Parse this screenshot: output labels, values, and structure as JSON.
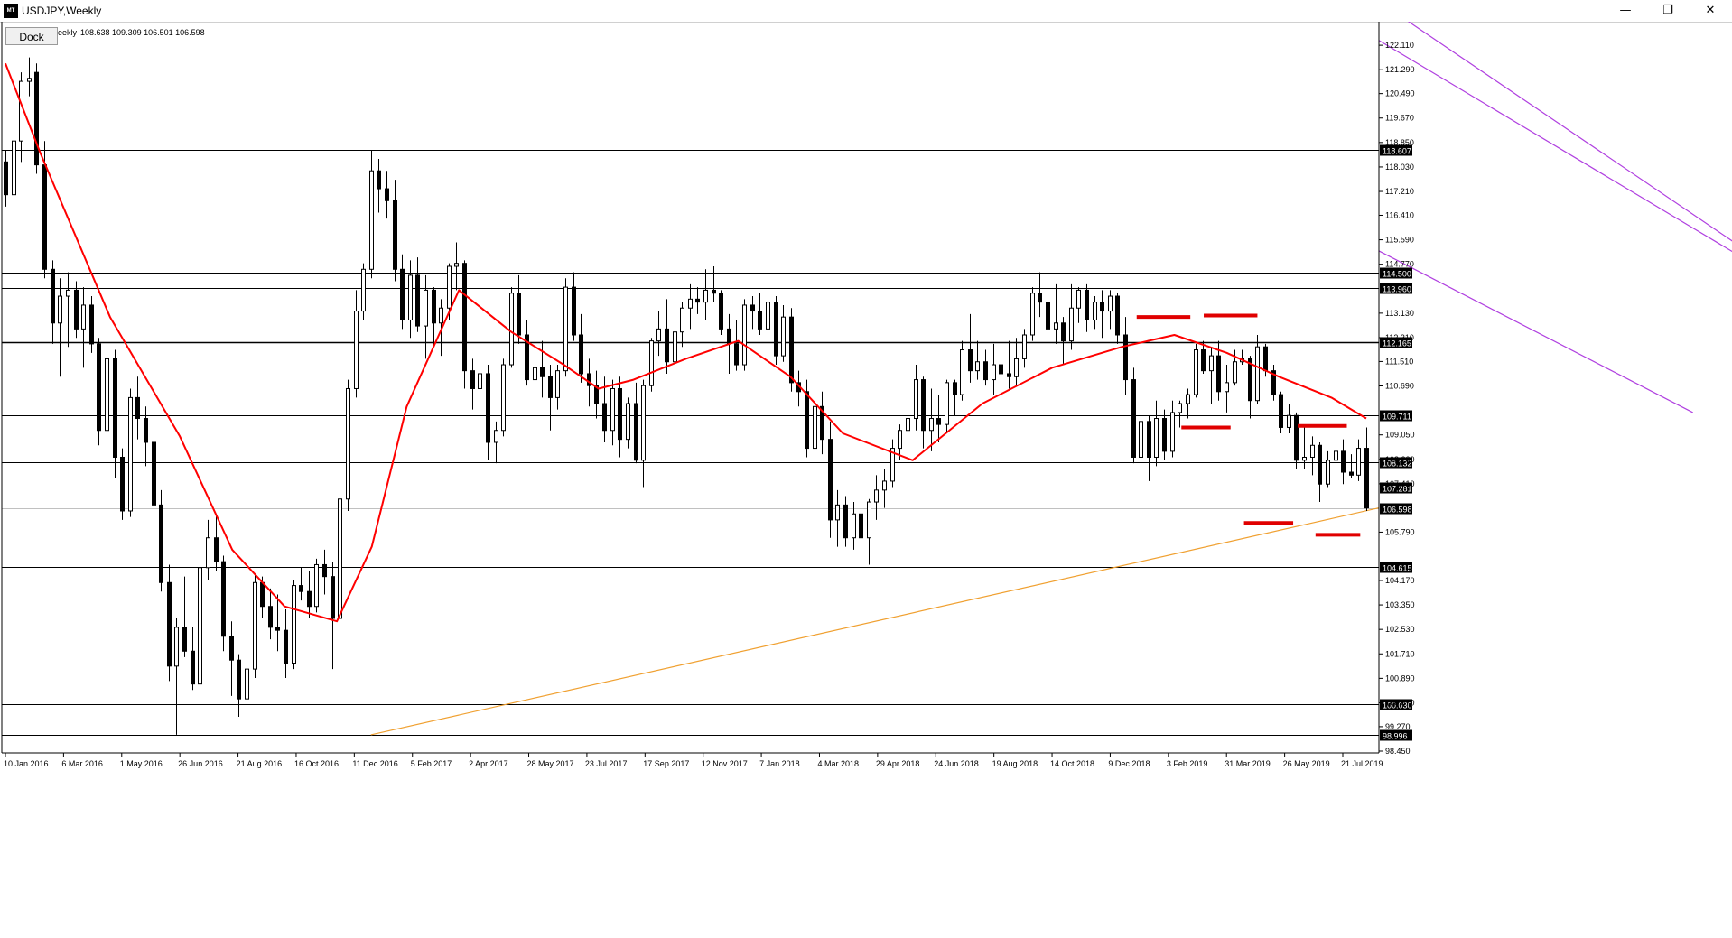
{
  "window": {
    "title": "USDJPY,Weekly",
    "app_icon_text": "MT",
    "minimize_glyph": "—",
    "restore_glyph": "❐",
    "close_glyph": "✕"
  },
  "toolbar": {
    "dock_label": "Dock"
  },
  "info": {
    "prefix": "eekly",
    "ohlc": "108.638 109.309 106.501 106.598"
  },
  "colors": {
    "background": "#ffffff",
    "candle": "#000000",
    "moving_average": "#ff0000",
    "trendline": "#f0a030",
    "channel": "#b040e0",
    "markers": "#e00000",
    "price_label_bg": "#000000",
    "price_label_text": "#ffffff"
  },
  "chart_data": {
    "type": "candlestick",
    "symbol": "USDJPY",
    "timeframe": "Weekly",
    "ylim": [
      98.45,
      122.9
    ],
    "grid": false,
    "y_ticks": [
      "122.110",
      "121.290",
      "120.490",
      "119.670",
      "118.850",
      "118.030",
      "117.210",
      "116.410",
      "115.590",
      "114.770",
      "113.130",
      "112.310",
      "111.510",
      "110.690",
      "109.050",
      "108.230",
      "107.410",
      "105.790",
      "104.170",
      "103.350",
      "102.530",
      "101.710",
      "100.890",
      "100.070",
      "99.270",
      "98.450"
    ],
    "x_labels": [
      "10 Jan 2016",
      "6 Mar 2016",
      "1 May 2016",
      "26 Jun 2016",
      "21 Aug 2016",
      "16 Oct 2016",
      "11 Dec 2016",
      "5 Feb 2017",
      "2 Apr 2017",
      "28 May 2017",
      "23 Jul 2017",
      "17 Sep 2017",
      "12 Nov 2017",
      "7 Jan 2018",
      "4 Mar 2018",
      "29 Apr 2018",
      "24 Jun 2018",
      "19 Aug 2018",
      "14 Oct 2018",
      "9 Dec 2018",
      "3 Feb 2019",
      "31 Mar 2019",
      "26 May 2019",
      "21 Jul 2019"
    ],
    "horizontal_levels": [
      {
        "price": 118.607,
        "label": "118.607"
      },
      {
        "price": 114.5,
        "label": "114.500"
      },
      {
        "price": 113.96,
        "label": "113.960"
      },
      {
        "price": 112.165,
        "label": "112.165"
      },
      {
        "price": 109.711,
        "label": "109.711"
      },
      {
        "price": 108.132,
        "label": "108.132"
      },
      {
        "price": 107.281,
        "label": "107.281"
      },
      {
        "price": 104.615,
        "label": "104.615"
      },
      {
        "price": 100.03,
        "label": "100.030"
      },
      {
        "price": 98.996,
        "label": "98.996"
      }
    ],
    "current_price": {
      "price": 106.598,
      "label": "106.598"
    },
    "candles": [
      [
        118.2,
        118.6,
        116.7,
        117.1
      ],
      [
        117.1,
        119.1,
        116.4,
        118.9
      ],
      [
        118.9,
        121.2,
        118.2,
        120.9
      ],
      [
        120.9,
        121.7,
        120.4,
        121.0
      ],
      [
        121.2,
        121.5,
        117.8,
        118.1
      ],
      [
        118.1,
        118.9,
        114.3,
        114.6
      ],
      [
        114.6,
        114.9,
        112.1,
        112.8
      ],
      [
        112.8,
        114.3,
        111.0,
        113.7
      ],
      [
        113.7,
        114.5,
        112.0,
        113.9
      ],
      [
        113.9,
        114.2,
        112.3,
        112.6
      ],
      [
        112.6,
        114.0,
        111.3,
        113.4
      ],
      [
        113.4,
        113.7,
        111.8,
        112.1
      ],
      [
        112.1,
        112.3,
        108.7,
        109.2
      ],
      [
        109.2,
        111.8,
        108.8,
        111.6
      ],
      [
        111.6,
        111.9,
        107.6,
        108.3
      ],
      [
        108.3,
        108.6,
        106.2,
        106.5
      ],
      [
        106.5,
        110.6,
        106.3,
        110.3
      ],
      [
        110.3,
        111.0,
        108.9,
        109.6
      ],
      [
        109.6,
        110.0,
        108.0,
        108.8
      ],
      [
        108.8,
        109.1,
        106.4,
        106.7
      ],
      [
        106.7,
        107.2,
        103.8,
        104.1
      ],
      [
        104.1,
        104.7,
        100.8,
        101.3
      ],
      [
        101.3,
        102.9,
        99.0,
        102.6
      ],
      [
        102.6,
        104.3,
        101.6,
        101.8
      ],
      [
        101.8,
        102.6,
        100.5,
        100.7
      ],
      [
        100.7,
        105.6,
        100.6,
        104.6
      ],
      [
        104.6,
        106.2,
        104.2,
        105.6
      ],
      [
        105.6,
        106.4,
        104.5,
        104.8
      ],
      [
        104.8,
        105.0,
        101.8,
        102.3
      ],
      [
        102.3,
        102.8,
        100.3,
        101.5
      ],
      [
        101.5,
        101.7,
        99.6,
        100.2
      ],
      [
        100.2,
        102.8,
        100.0,
        101.2
      ],
      [
        101.2,
        104.4,
        100.9,
        104.1
      ],
      [
        104.1,
        104.3,
        102.9,
        103.3
      ],
      [
        103.3,
        103.9,
        102.2,
        102.6
      ],
      [
        102.6,
        103.7,
        101.8,
        102.5
      ],
      [
        102.5,
        103.2,
        100.9,
        101.4
      ],
      [
        101.4,
        104.2,
        101.2,
        104.0
      ],
      [
        104.0,
        104.6,
        103.5,
        103.8
      ],
      [
        103.8,
        104.5,
        102.9,
        103.3
      ],
      [
        103.3,
        104.9,
        103.1,
        104.7
      ],
      [
        104.7,
        105.2,
        103.7,
        104.3
      ],
      [
        104.3,
        104.8,
        101.2,
        102.9
      ],
      [
        102.9,
        107.2,
        102.6,
        106.9
      ],
      [
        106.9,
        110.9,
        106.5,
        110.6
      ],
      [
        110.6,
        113.9,
        110.3,
        113.2
      ],
      [
        113.2,
        114.8,
        112.9,
        114.6
      ],
      [
        114.6,
        118.6,
        114.3,
        117.9
      ],
      [
        117.9,
        118.3,
        116.5,
        117.3
      ],
      [
        117.3,
        117.9,
        116.3,
        116.9
      ],
      [
        116.9,
        117.6,
        114.2,
        114.6
      ],
      [
        114.6,
        115.1,
        112.6,
        112.9
      ],
      [
        112.9,
        114.9,
        112.3,
        114.4
      ],
      [
        114.4,
        115.0,
        112.5,
        112.7
      ],
      [
        112.7,
        114.4,
        111.6,
        113.9
      ],
      [
        113.9,
        114.0,
        112.0,
        112.8
      ],
      [
        112.8,
        113.6,
        111.7,
        113.3
      ],
      [
        113.3,
        114.8,
        112.9,
        114.7
      ],
      [
        114.7,
        115.5,
        113.9,
        114.8
      ],
      [
        114.8,
        114.9,
        110.6,
        111.2
      ],
      [
        111.2,
        111.6,
        109.9,
        110.6
      ],
      [
        110.6,
        111.5,
        110.1,
        111.1
      ],
      [
        111.1,
        111.4,
        108.2,
        108.8
      ],
      [
        108.8,
        109.5,
        108.1,
        109.2
      ],
      [
        109.2,
        111.6,
        109.0,
        111.4
      ],
      [
        111.4,
        114.0,
        111.3,
        113.8
      ],
      [
        113.8,
        114.4,
        112.1,
        112.4
      ],
      [
        112.4,
        112.9,
        110.7,
        110.9
      ],
      [
        110.9,
        111.8,
        109.8,
        111.3
      ],
      [
        111.3,
        112.2,
        110.3,
        111.0
      ],
      [
        111.0,
        111.4,
        109.2,
        110.3
      ],
      [
        110.3,
        111.4,
        109.9,
        111.2
      ],
      [
        111.2,
        114.3,
        111.0,
        114.0
      ],
      [
        114.0,
        114.5,
        112.2,
        112.4
      ],
      [
        112.4,
        113.1,
        110.8,
        111.1
      ],
      [
        111.1,
        111.6,
        110.0,
        110.7
      ],
      [
        110.7,
        111.2,
        109.6,
        110.1
      ],
      [
        110.1,
        111.0,
        108.8,
        109.2
      ],
      [
        109.2,
        110.9,
        108.7,
        110.6
      ],
      [
        110.6,
        111.0,
        108.3,
        108.9
      ],
      [
        108.9,
        110.3,
        108.6,
        110.1
      ],
      [
        110.1,
        110.8,
        108.1,
        108.2
      ],
      [
        108.2,
        110.9,
        107.3,
        110.7
      ],
      [
        110.7,
        112.3,
        110.5,
        112.2
      ],
      [
        112.2,
        113.2,
        111.7,
        112.6
      ],
      [
        112.6,
        113.6,
        111.1,
        111.5
      ],
      [
        111.5,
        112.7,
        110.8,
        112.5
      ],
      [
        112.5,
        113.5,
        112.0,
        113.3
      ],
      [
        113.3,
        114.1,
        112.6,
        113.6
      ],
      [
        113.6,
        114.0,
        113.1,
        113.5
      ],
      [
        113.5,
        114.6,
        112.9,
        113.9
      ],
      [
        113.9,
        114.7,
        113.5,
        113.8
      ],
      [
        113.8,
        113.9,
        112.4,
        112.6
      ],
      [
        112.6,
        113.1,
        111.1,
        112.1
      ],
      [
        112.1,
        112.9,
        111.2,
        111.4
      ],
      [
        111.4,
        113.6,
        111.2,
        113.4
      ],
      [
        113.4,
        113.7,
        112.6,
        113.2
      ],
      [
        113.2,
        113.8,
        112.4,
        112.6
      ],
      [
        112.6,
        113.7,
        112.2,
        113.5
      ],
      [
        113.5,
        113.7,
        111.4,
        111.7
      ],
      [
        111.7,
        113.4,
        111.5,
        113.0
      ],
      [
        113.0,
        113.3,
        110.5,
        110.8
      ],
      [
        110.8,
        111.2,
        110.0,
        110.5
      ],
      [
        110.5,
        110.9,
        108.3,
        108.6
      ],
      [
        108.6,
        110.3,
        108.0,
        110.0
      ],
      [
        110.0,
        110.5,
        108.4,
        108.9
      ],
      [
        108.9,
        109.5,
        105.6,
        106.2
      ],
      [
        106.2,
        107.2,
        105.3,
        106.7
      ],
      [
        106.7,
        107.0,
        105.3,
        105.6
      ],
      [
        105.6,
        106.8,
        105.2,
        106.4
      ],
      [
        106.4,
        106.5,
        104.6,
        105.6
      ],
      [
        105.6,
        106.9,
        104.7,
        106.8
      ],
      [
        106.8,
        107.7,
        106.2,
        107.2
      ],
      [
        107.2,
        107.9,
        106.6,
        107.5
      ],
      [
        107.5,
        108.9,
        107.3,
        108.6
      ],
      [
        108.6,
        109.4,
        108.2,
        109.2
      ],
      [
        109.2,
        110.4,
        108.9,
        109.6
      ],
      [
        109.6,
        111.4,
        109.2,
        110.9
      ],
      [
        110.9,
        111.0,
        108.6,
        109.2
      ],
      [
        109.2,
        110.6,
        108.5,
        109.6
      ],
      [
        109.6,
        110.4,
        108.8,
        109.4
      ],
      [
        109.4,
        110.9,
        109.1,
        110.8
      ],
      [
        110.8,
        110.9,
        109.7,
        110.4
      ],
      [
        110.4,
        112.2,
        110.2,
        111.9
      ],
      [
        111.9,
        113.1,
        110.8,
        111.2
      ],
      [
        111.2,
        112.2,
        110.9,
        111.5
      ],
      [
        111.5,
        111.9,
        110.7,
        110.9
      ],
      [
        110.9,
        112.1,
        110.4,
        111.4
      ],
      [
        111.4,
        111.8,
        110.3,
        111.1
      ],
      [
        111.1,
        112.2,
        110.6,
        111.0
      ],
      [
        111.0,
        112.3,
        110.7,
        111.6
      ],
      [
        111.6,
        112.6,
        111.3,
        112.4
      ],
      [
        112.4,
        114.0,
        112.2,
        113.8
      ],
      [
        113.8,
        114.5,
        113.0,
        113.5
      ],
      [
        113.5,
        113.9,
        112.3,
        112.6
      ],
      [
        112.6,
        114.1,
        112.1,
        112.8
      ],
      [
        112.8,
        113.0,
        111.4,
        112.2
      ],
      [
        112.2,
        114.1,
        111.9,
        113.3
      ],
      [
        113.3,
        114.0,
        112.8,
        113.9
      ],
      [
        113.9,
        114.1,
        112.5,
        112.9
      ],
      [
        112.9,
        113.7,
        112.6,
        113.5
      ],
      [
        113.5,
        113.9,
        112.3,
        113.2
      ],
      [
        113.2,
        113.9,
        112.6,
        113.7
      ],
      [
        113.7,
        113.8,
        112.1,
        112.4
      ],
      [
        112.4,
        113.0,
        110.4,
        110.9
      ],
      [
        110.9,
        111.3,
        108.1,
        108.3
      ],
      [
        108.3,
        110.0,
        108.1,
        109.5
      ],
      [
        109.5,
        109.7,
        107.5,
        108.3
      ],
      [
        108.3,
        110.2,
        108.0,
        109.6
      ],
      [
        109.6,
        109.9,
        108.2,
        108.5
      ],
      [
        108.5,
        110.2,
        108.3,
        109.8
      ],
      [
        109.8,
        110.2,
        109.3,
        110.1
      ],
      [
        110.1,
        110.6,
        109.6,
        110.4
      ],
      [
        110.4,
        112.1,
        110.3,
        111.9
      ],
      [
        111.9,
        112.2,
        111.1,
        111.2
      ],
      [
        111.2,
        112.0,
        110.1,
        111.7
      ],
      [
        111.7,
        112.2,
        110.2,
        110.5
      ],
      [
        110.5,
        111.4,
        109.8,
        110.8
      ],
      [
        110.8,
        111.9,
        110.7,
        111.5
      ],
      [
        111.5,
        111.9,
        111.4,
        111.6
      ],
      [
        111.6,
        111.7,
        109.6,
        110.2
      ],
      [
        110.2,
        112.4,
        110.1,
        112.0
      ],
      [
        112.0,
        112.1,
        111.0,
        111.2
      ],
      [
        111.2,
        111.4,
        110.2,
        110.4
      ],
      [
        110.4,
        110.5,
        109.1,
        109.3
      ],
      [
        109.3,
        110.1,
        109.1,
        109.7
      ],
      [
        109.7,
        109.8,
        107.9,
        108.2
      ],
      [
        108.2,
        109.4,
        107.9,
        108.3
      ],
      [
        108.3,
        109.0,
        107.7,
        108.7
      ],
      [
        108.7,
        108.8,
        106.8,
        107.4
      ],
      [
        107.4,
        108.5,
        107.3,
        108.2
      ],
      [
        108.2,
        108.6,
        107.8,
        108.5
      ],
      [
        108.5,
        108.9,
        107.4,
        107.8
      ],
      [
        107.8,
        108.4,
        107.6,
        107.7
      ],
      [
        107.7,
        108.9,
        107.5,
        108.6
      ],
      [
        108.6,
        109.3,
        106.5,
        106.6
      ]
    ],
    "moving_average": [
      [
        0,
        121.5
      ],
      [
        10,
        118.5
      ],
      [
        30,
        113.0
      ],
      [
        50,
        109.0
      ],
      [
        65,
        105.2
      ],
      [
        80,
        103.3
      ],
      [
        95,
        102.8
      ],
      [
        105,
        105.3
      ],
      [
        115,
        110.0
      ],
      [
        130,
        113.9
      ],
      [
        145,
        112.5
      ],
      [
        160,
        111.4
      ],
      [
        170,
        110.6
      ],
      [
        180,
        110.9
      ],
      [
        195,
        111.6
      ],
      [
        210,
        112.2
      ],
      [
        225,
        111.0
      ],
      [
        240,
        109.1
      ],
      [
        260,
        108.2
      ],
      [
        280,
        110.1
      ],
      [
        300,
        111.3
      ],
      [
        320,
        112.0
      ],
      [
        335,
        112.4
      ],
      [
        350,
        111.8
      ],
      [
        365,
        111.0
      ],
      [
        380,
        110.3
      ],
      [
        390,
        109.6
      ]
    ],
    "moving_average_x_unit": "index-like placeholder",
    "trendlines": [
      {
        "type": "rising-support",
        "from": [
          47,
          98.996
        ],
        "to": [
          255,
          111.2
        ]
      },
      {
        "type": "channel-upper-1",
        "from": [
          228,
          114.5
        ],
        "to": [
          258,
          109.2
        ]
      },
      {
        "type": "channel-upper-2",
        "from": [
          230,
          113.96
        ],
        "to": [
          258,
          109.6
        ]
      },
      {
        "type": "channel-lower",
        "from": [
          217,
          109.8
        ],
        "to": [
          258,
          104.3
        ]
      }
    ],
    "markers": [
      {
        "from": [
          253,
          113.0
        ],
        "to": [
          265,
          113.0
        ]
      },
      {
        "from": [
          268,
          113.05
        ],
        "to": [
          280,
          113.05
        ]
      },
      {
        "from": [
          263,
          109.3
        ],
        "to": [
          274,
          109.3
        ]
      },
      {
        "from": [
          289,
          109.35
        ],
        "to": [
          300,
          109.35
        ]
      },
      {
        "from": [
          277,
          106.1
        ],
        "to": [
          288,
          106.1
        ]
      },
      {
        "from": [
          293,
          105.7
        ],
        "to": [
          303,
          105.7
        ]
      }
    ]
  }
}
